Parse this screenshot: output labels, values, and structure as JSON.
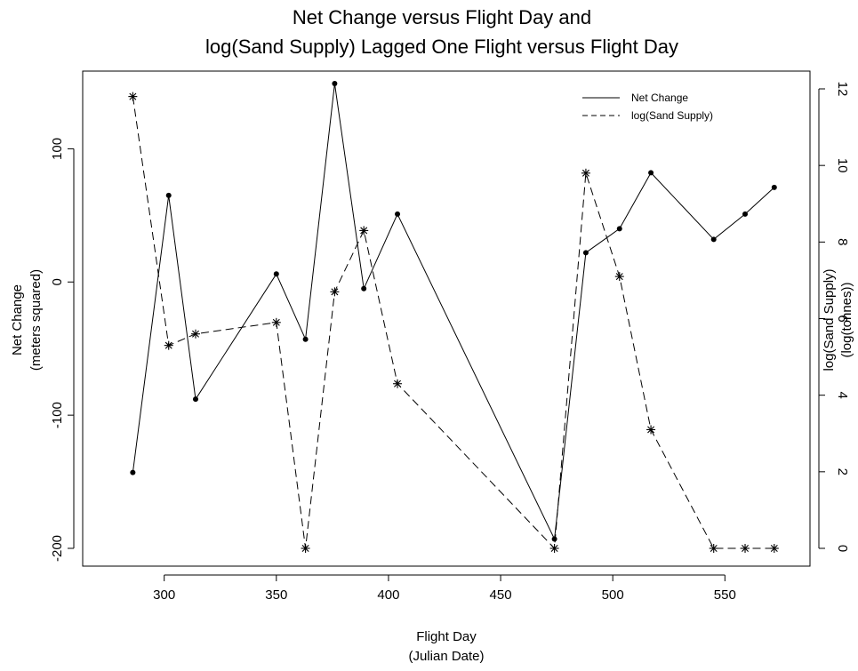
{
  "chart_data": {
    "type": "line",
    "title_line1": "Net Change versus Flight Day and",
    "title_line2": "log(Sand Supply) Lagged One Flight versus Flight Day",
    "xlabel_line1": "Flight Day",
    "xlabel_line2": "(Julian Date)",
    "ylabel_left_line1": "Net Change",
    "ylabel_left_line2": "(meters squared)",
    "ylabel_right_line1": "log(Sand Supply)",
    "ylabel_right_line2": "(log(tonnes))",
    "xlim": [
      270,
      580
    ],
    "ylim_left": [
      -200,
      145
    ],
    "ylim_right": [
      0,
      12
    ],
    "x_ticks": [
      300,
      350,
      400,
      450,
      500,
      550
    ],
    "y_ticks_left": [
      -200,
      -100,
      0,
      100
    ],
    "y_ticks_right": [
      0,
      2,
      4,
      6,
      8,
      10,
      12
    ],
    "grid": false,
    "legend_position": "top-right",
    "series": [
      {
        "name": "Net Change",
        "axis": "left",
        "line_style": "solid",
        "marker": "dot",
        "x": [
          286,
          302,
          314,
          350,
          363,
          376,
          389,
          404,
          474,
          488,
          503,
          517,
          545,
          559,
          572
        ],
        "y": [
          -143,
          65,
          -88,
          6,
          -43,
          149,
          -5,
          51,
          -193,
          22,
          40,
          82,
          32,
          51,
          71
        ]
      },
      {
        "name": "log(Sand Supply)",
        "axis": "right",
        "line_style": "dashed",
        "marker": "star",
        "x": [
          286,
          302,
          314,
          350,
          363,
          376,
          389,
          404,
          474,
          488,
          503,
          517,
          545,
          559,
          572
        ],
        "y": [
          11.8,
          5.3,
          5.6,
          5.9,
          0.0,
          6.7,
          8.3,
          4.3,
          0.0,
          9.8,
          7.1,
          3.1,
          0.0,
          0.0,
          0.0
        ]
      }
    ]
  }
}
